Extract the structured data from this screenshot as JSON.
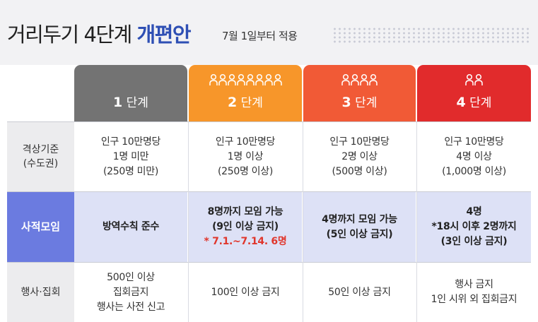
{
  "header": {
    "title_main": "거리두기 4단계",
    "title_accent": "개편안",
    "subtitle": "7월 1일부터 적용"
  },
  "columns": [
    {
      "num": "1",
      "label": "단계",
      "color": "#737373",
      "people": 0
    },
    {
      "num": "2",
      "label": "단계",
      "color": "#f7962a",
      "people": 8
    },
    {
      "num": "3",
      "label": "단계",
      "color": "#f15a36",
      "people": 4
    },
    {
      "num": "4",
      "label": "단계",
      "color": "#e12b2c",
      "people": 2
    }
  ],
  "rows": [
    {
      "label_lines": [
        "격상기준",
        "(수도권)"
      ],
      "cells": [
        {
          "lines": [
            "인구 10만명당",
            "1명 미만",
            "(250명 미만)"
          ]
        },
        {
          "lines": [
            "인구 10만명당",
            "1명 이상",
            "(250명 이상)"
          ]
        },
        {
          "lines": [
            "인구 10만명당",
            "2명 이상",
            "(500명 이상)"
          ]
        },
        {
          "lines": [
            "인구 10만명당",
            "4명 이상",
            "(1,000명 이상)"
          ]
        }
      ]
    },
    {
      "label_lines": [
        "사적모임"
      ],
      "cells": [
        {
          "lines": [
            "방역수칙 준수"
          ]
        },
        {
          "lines": [
            "8명까지 모임 가능",
            "(9인 이상 금지)"
          ],
          "note": "* 7.1.~7.14. 6명"
        },
        {
          "lines": [
            "4명까지 모임 가능",
            "(5인 이상 금지)"
          ]
        },
        {
          "lines": [
            "4명",
            "*18시 이후 2명까지",
            "(3인 이상 금지)"
          ]
        }
      ]
    },
    {
      "label_lines": [
        "행사·집회"
      ],
      "cells": [
        {
          "lines": [
            "500인 이상",
            "집회금지",
            "행사는 사전 신고"
          ]
        },
        {
          "lines": [
            "100인 이상 금지"
          ]
        },
        {
          "lines": [
            "50인 이상 금지"
          ]
        },
        {
          "lines": [
            "행사 금지",
            "1인 시위 외 집회금지"
          ]
        }
      ]
    }
  ],
  "colors": {
    "accent_title": "#2e4fb4",
    "social_label_bg": "#6b7be0",
    "social_row_bg": "#dde1f6",
    "note_red": "#e0362c"
  },
  "icons": {
    "person": "person-icon"
  }
}
